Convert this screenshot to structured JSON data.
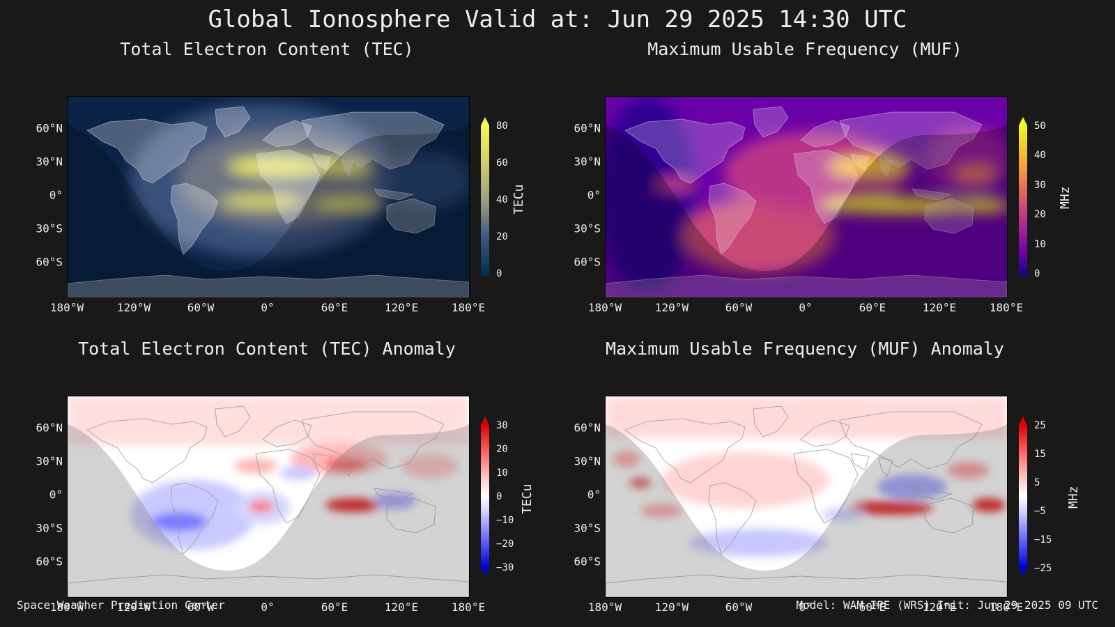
{
  "header": {
    "title": "Global Ionosphere Valid at: Jun 29 2025 14:30 UTC"
  },
  "footer": {
    "left": "Space Weather Prediction Center",
    "right": "Model: WAM-IPE (WRS) Init: Jun 29 2025 09 UTC"
  },
  "axes": {
    "lat_labels": [
      "60°N",
      "30°N",
      "0°",
      "30°S",
      "60°S"
    ],
    "lon_labels": [
      "180°W",
      "120°W",
      "60°W",
      "0°",
      "60°E",
      "120°E",
      "180°E"
    ]
  },
  "panels": {
    "tec": {
      "title": "Total Electron Content (TEC)",
      "colorbar": {
        "label": "TECu",
        "ticks": [
          "80",
          "60",
          "40",
          "20",
          "0"
        ],
        "colors": [
          "#f6f654",
          "#cfcf6a",
          "#9c9c80",
          "#5e6f86",
          "#1f3a6a",
          "#002e4f"
        ]
      }
    },
    "muf": {
      "title": "Maximum Usable Frequency (MUF)",
      "colorbar": {
        "label": "MHz",
        "ticks": [
          "50",
          "40",
          "30",
          "20",
          "10",
          "0"
        ],
        "colors": [
          "#f0f921",
          "#fca636",
          "#e16462",
          "#b12a90",
          "#6a00a8",
          "#0d0887"
        ]
      }
    },
    "tec_anom": {
      "title": "Total Electron Content (TEC) Anomaly",
      "colorbar": {
        "label": "TECu",
        "ticks": [
          "30",
          "20",
          "10",
          "0",
          "−10",
          "−20",
          "−30"
        ],
        "colors": [
          "#dd0000",
          "#ff6a6a",
          "#ffd0d0",
          "#ffffff",
          "#d0d0ff",
          "#6a6aff",
          "#0000dd"
        ]
      }
    },
    "muf_anom": {
      "title": "Maximum Usable Frequency (MUF) Anomaly",
      "colorbar": {
        "label": "MHz",
        "ticks": [
          "25",
          "15",
          "5",
          "−5",
          "−15",
          "−25"
        ],
        "colors": [
          "#dd0000",
          "#ff6a6a",
          "#ffd0d0",
          "#ffffff",
          "#d0d0ff",
          "#6a6aff",
          "#0000dd"
        ]
      }
    }
  }
}
